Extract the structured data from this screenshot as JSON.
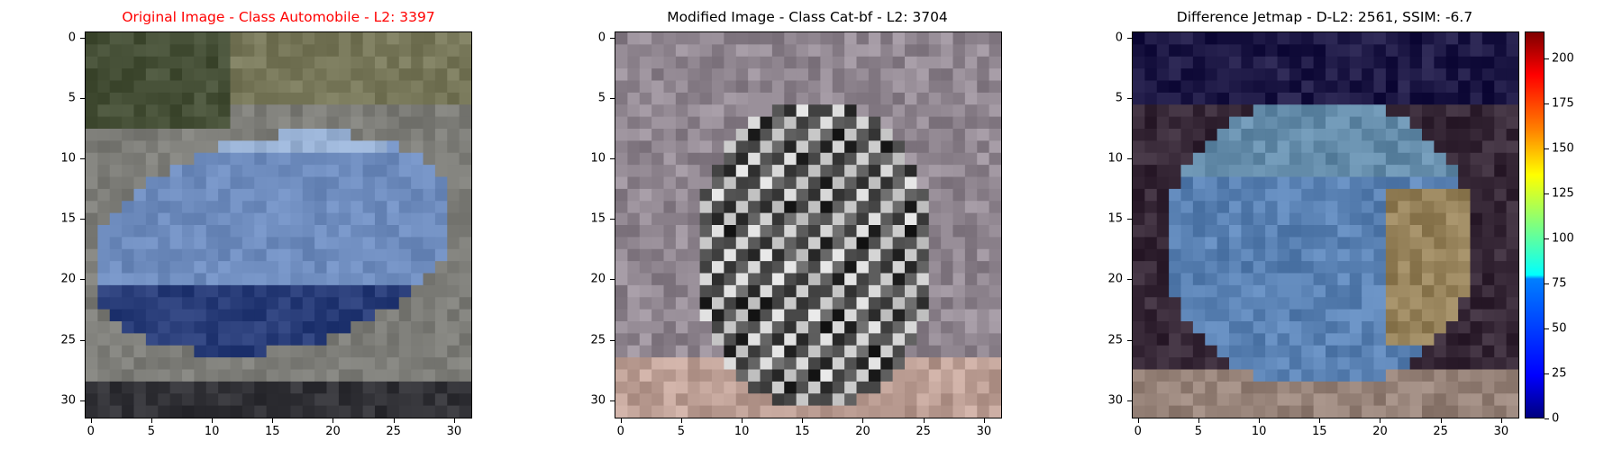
{
  "chart_data": [
    {
      "type": "heatmap",
      "title": "Original Image - Class Automobile - L2: 3397",
      "title_color": "#ff0000",
      "content": "image-automobile",
      "xlim": [
        -0.5,
        31.5
      ],
      "ylim": [
        31.5,
        -0.5
      ],
      "x_ticks": [
        "0",
        "5",
        "10",
        "15",
        "20",
        "25",
        "30"
      ],
      "y_ticks": [
        "0",
        "5",
        "10",
        "15",
        "20",
        "25",
        "30"
      ]
    },
    {
      "type": "heatmap",
      "title": "Modified Image - Class Cat-bf - L2: 3704",
      "title_color": "#000000",
      "content": "image-cat",
      "xlim": [
        -0.5,
        31.5
      ],
      "ylim": [
        31.5,
        -0.5
      ],
      "x_ticks": [
        "0",
        "5",
        "10",
        "15",
        "20",
        "25",
        "30"
      ],
      "y_ticks": [
        "0",
        "5",
        "10",
        "15",
        "20",
        "25",
        "30"
      ]
    },
    {
      "type": "heatmap",
      "title": "Difference Jetmap - D-L2: 2561, SSIM: -6.7",
      "title_color": "#000000",
      "content": "image-difference",
      "colormap": "jet",
      "xlim": [
        -0.5,
        31.5
      ],
      "ylim": [
        31.5,
        -0.5
      ],
      "x_ticks": [
        "0",
        "5",
        "10",
        "15",
        "20",
        "25",
        "30"
      ],
      "y_ticks": [
        "0",
        "5",
        "10",
        "15",
        "20",
        "25",
        "30"
      ],
      "colorbar": {
        "range": [
          0,
          215
        ],
        "ticks": [
          "0",
          "25",
          "50",
          "75",
          "100",
          "125",
          "150",
          "175",
          "200"
        ]
      }
    }
  ]
}
